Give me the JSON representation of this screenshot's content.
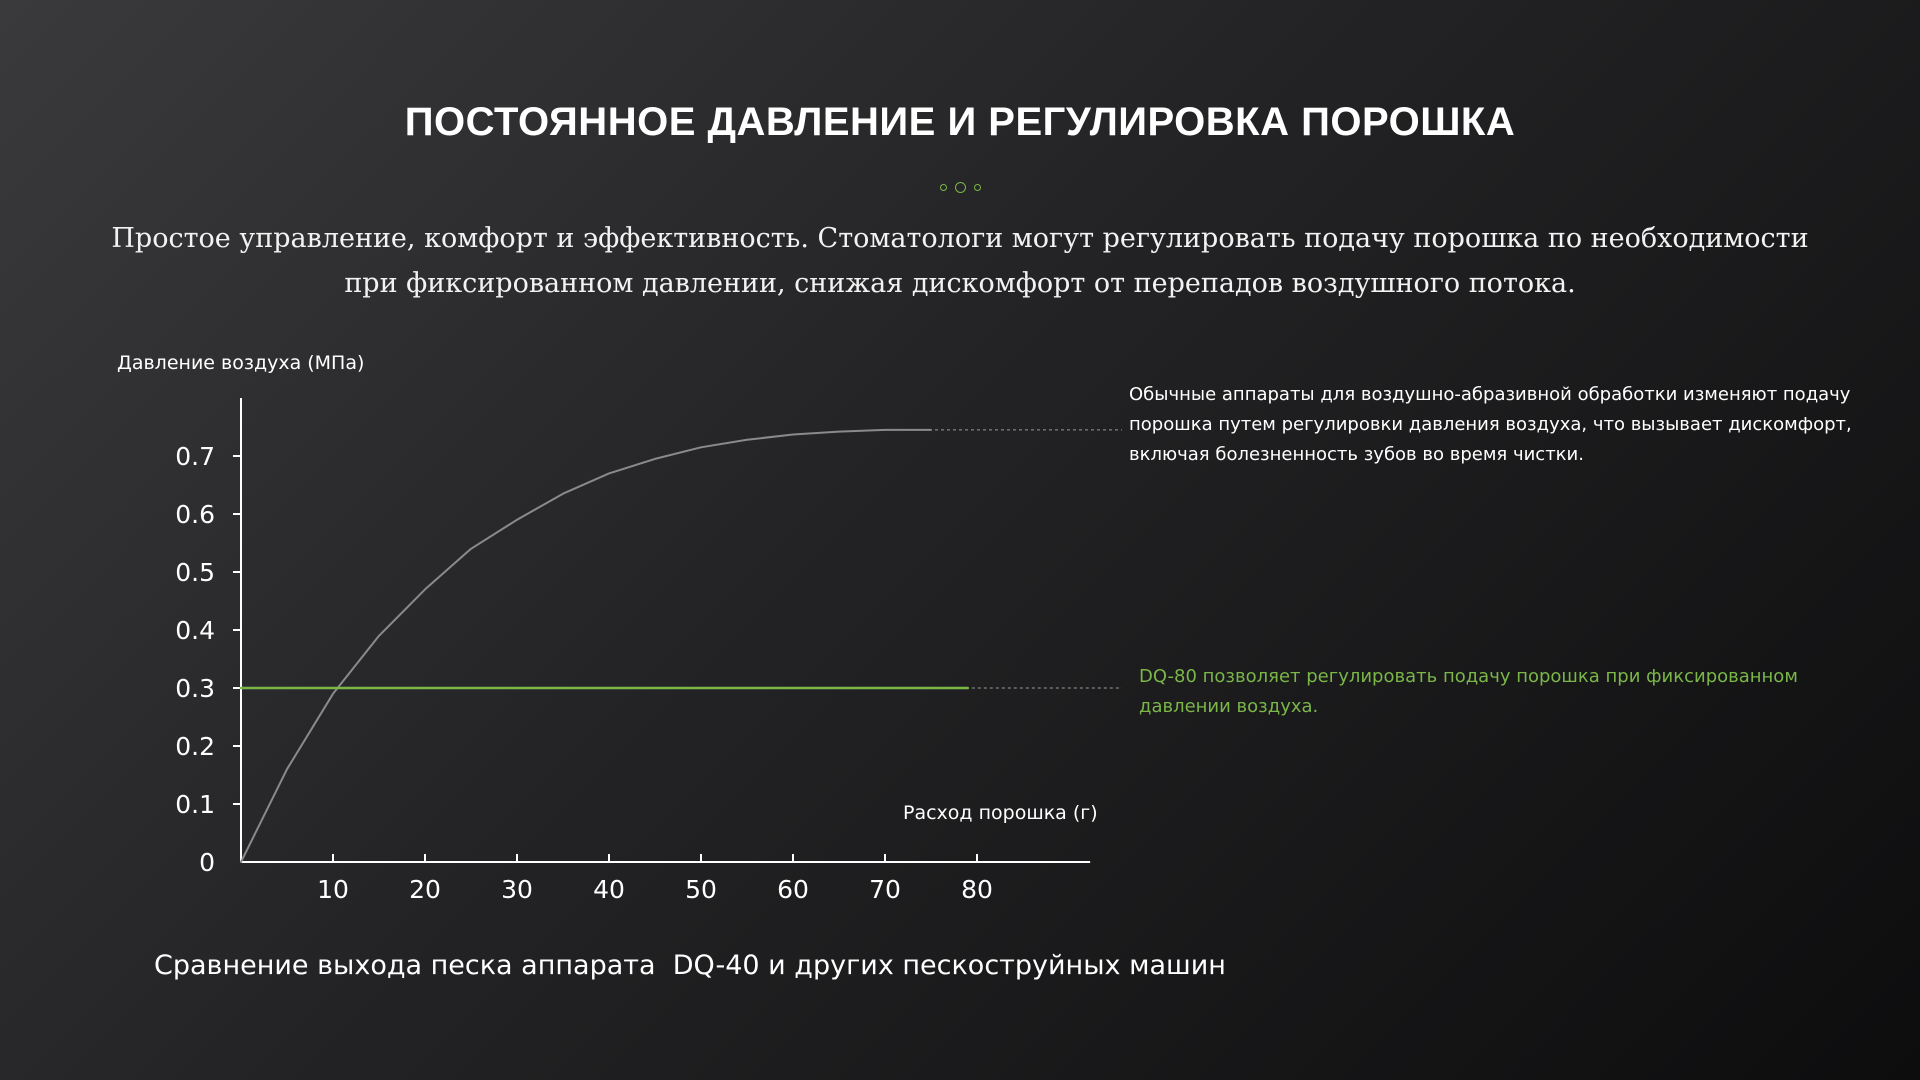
{
  "header": {
    "title": "ПОСТОЯННОЕ ДАВЛЕНИЕ И РЕГУЛИРОВКА ПОРОШКА",
    "subtitle": "Простое управление, комфорт и эффективность. Стоматологи могут регулировать подачу порошка по необходимости при фиксированном давлении, снижая дискомфорт от перепадов воздушного потока."
  },
  "annotations": {
    "conventional": "Обычные аппараты для воздушно-абразивной обработки изменяют подачу порошка путем регулировки давления воздуха, что вызывает дискомфорт, включая болезненность зубов во время чистки.",
    "dq80": "DQ-80 позволяет регулировать подачу порошка при фиксированном давлении воздуха."
  },
  "caption": "Сравнение выхода песка аппарата  DQ-40 и других пескоструйных машин",
  "colors": {
    "accent": "#7ab648",
    "curve": "#8a8a8a",
    "axis": "#ffffff",
    "background_start": "#3a3a3c",
    "background_end": "#0d0d0e"
  },
  "chart_data": {
    "type": "line",
    "xlabel": "Расход порошка (г)",
    "ylabel": "Давление воздуха (МПа)",
    "xlim": [
      0,
      90
    ],
    "ylim": [
      0,
      0.8
    ],
    "x_ticks": [
      "10",
      "20",
      "30",
      "40",
      "50",
      "60",
      "70",
      "80"
    ],
    "x_tick_values": [
      10,
      20,
      30,
      40,
      50,
      60,
      70,
      80
    ],
    "y_ticks": [
      "0",
      "0.1",
      "0.2",
      "0.3",
      "0.4",
      "0.5",
      "0.6",
      "0.7"
    ],
    "y_tick_values": [
      0,
      0.1,
      0.2,
      0.3,
      0.4,
      0.5,
      0.6,
      0.7
    ],
    "grid": false,
    "series": [
      {
        "color": "#8a8a8a",
        "x": [
          0,
          5,
          10,
          15,
          20,
          25,
          30,
          35,
          40,
          45,
          50,
          55,
          60,
          65,
          70,
          75
        ],
        "y": [
          0,
          0.16,
          0.29,
          0.39,
          0.47,
          0.54,
          0.59,
          0.635,
          0.67,
          0.695,
          0.715,
          0.728,
          0.737,
          0.742,
          0.745,
          0.745
        ]
      },
      {
        "color": "#7ab648",
        "x": [
          0,
          79
        ],
        "y": [
          0.3,
          0.3
        ]
      }
    ]
  }
}
